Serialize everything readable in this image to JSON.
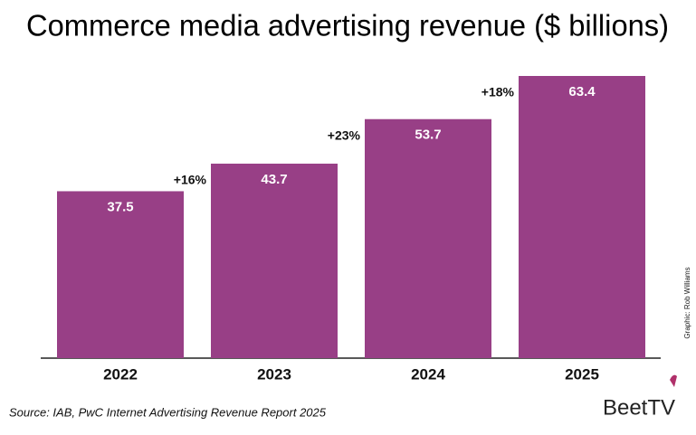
{
  "chart_data": {
    "type": "bar",
    "title": "Commerce media advertising revenue ($ billions)",
    "categories": [
      "2022",
      "2023",
      "2024",
      "2025"
    ],
    "values": [
      37.5,
      43.7,
      53.7,
      63.4
    ],
    "color": "#983f86",
    "annotations": [
      "+16%",
      "+23%",
      "+18%"
    ],
    "source": "Source: IAB, PwC Internet Advertising Revenue Report 2025",
    "credit": "Graphic: Rob Williams",
    "logo": "BeetTV"
  }
}
